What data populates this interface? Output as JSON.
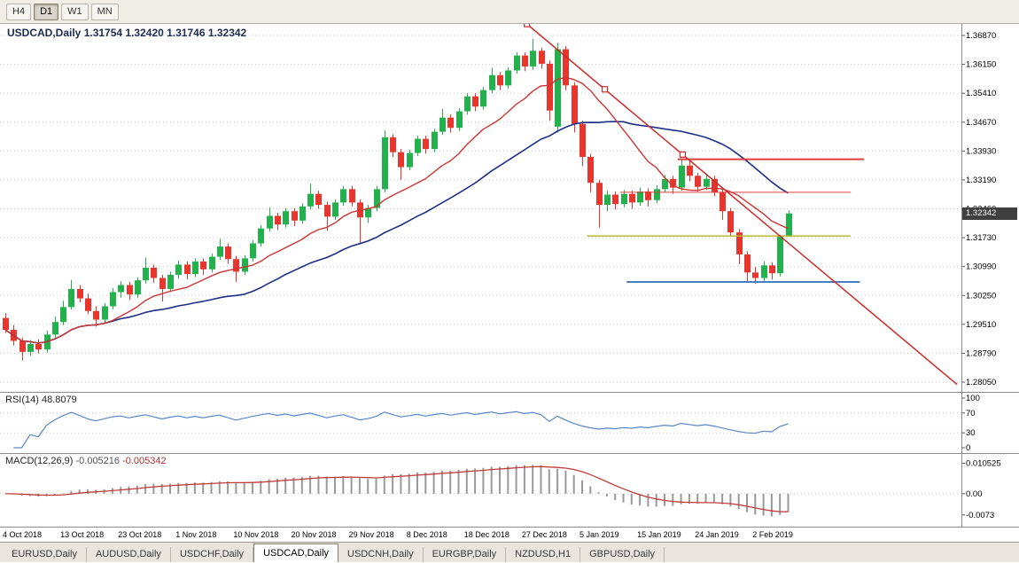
{
  "colors": {
    "bull": "#22b14c",
    "bear": "#e8352e",
    "ma_fast": "#cf3434",
    "ma_slow": "#1c2f86",
    "trend": "#cc2a2a",
    "hline_red": "#e03c3c",
    "hline_yellow": "#b7ba2f",
    "hline_blue": "#4a7fbf",
    "rsi_line": "#5a87c5",
    "macd_hist": "#999999",
    "macd_signal": "#c23b3b",
    "grid": "#c9c9c9",
    "axis_text": "#000000",
    "badge_bg": "#3f3f3f"
  },
  "toolbar": {
    "timeframes": [
      {
        "label": "H4",
        "active": false
      },
      {
        "label": "D1",
        "active": true
      },
      {
        "label": "W1",
        "active": false
      },
      {
        "label": "MN",
        "active": false
      }
    ]
  },
  "chart": {
    "title": "USDCAD,Daily",
    "ohlc_text": "1.31754 1.32420 1.31746 1.32342",
    "price_badge": "1.32342",
    "price_axis_labels": [
      "1.36870",
      "1.36150",
      "1.35410",
      "1.34670",
      "1.33930",
      "1.33190",
      "1.32460",
      "1.31730",
      "1.30990",
      "1.30250",
      "1.29510",
      "1.28790",
      "1.28050"
    ]
  },
  "rsi": {
    "label": "RSI(14)",
    "value": "48.8079",
    "axis_labels": [
      "100",
      "70",
      "30",
      "0"
    ],
    "axis_values": [
      100,
      70,
      30,
      0
    ],
    "levels": [
      70,
      30
    ]
  },
  "macd": {
    "label": "MACD(12,26,9)",
    "value_main": "-0.005216",
    "value_signal": "-0.005342",
    "axis_labels": [
      "0.010525",
      "0.00",
      "-0.0073"
    ],
    "axis_values": [
      0.010525,
      0,
      -0.0073
    ]
  },
  "date_axis": {
    "ticks": [
      {
        "index": 0,
        "label": "4 Oct 2018"
      },
      {
        "index": 7,
        "label": "13 Oct 2018"
      },
      {
        "index": 14,
        "label": "23 Oct 2018"
      },
      {
        "index": 21,
        "label": "1 Nov 2018"
      },
      {
        "index": 28,
        "label": "10 Nov 2018"
      },
      {
        "index": 35,
        "label": "20 Nov 2018"
      },
      {
        "index": 42,
        "label": "29 Nov 2018"
      },
      {
        "index": 49,
        "label": "8 Dec 2018"
      },
      {
        "index": 56,
        "label": "18 Dec 2018"
      },
      {
        "index": 63,
        "label": "27 Dec 2018"
      },
      {
        "index": 70,
        "label": "5 Jan 2019"
      },
      {
        "index": 77,
        "label": "15 Jan 2019"
      },
      {
        "index": 84,
        "label": "24 Jan 2019"
      },
      {
        "index": 91,
        "label": "2 Feb 2019"
      }
    ]
  },
  "tabs": [
    {
      "label": "EURUSD,Daily",
      "active": false
    },
    {
      "label": "AUDUSD,Daily",
      "active": false
    },
    {
      "label": "USDCHF,Daily",
      "active": false
    },
    {
      "label": "USDCAD,Daily",
      "active": true
    },
    {
      "label": "USDCNH,Daily",
      "active": false
    },
    {
      "label": "EURGBP,Daily",
      "active": false
    },
    {
      "label": "NZDUSD,H1",
      "active": false
    },
    {
      "label": "GBPUSD,Daily",
      "active": false
    }
  ],
  "chart_data": {
    "type": "candlestick",
    "symbol": "USDCAD",
    "timeframe": "Daily",
    "ylim": [
      1.2805,
      1.3687
    ],
    "current_price": 1.32342,
    "last_bar": {
      "open": 1.31754,
      "high": 1.3242,
      "low": 1.31746,
      "close": 1.32342
    },
    "indicators": {
      "rsi_period": 14,
      "rsi_current": 48.8079,
      "macd_params": [
        12,
        26,
        9
      ],
      "macd_current": -0.005216,
      "macd_signal_current": -0.005342,
      "ma_fast_period": 13,
      "ma_slow_period": 30
    },
    "ohlc": [
      [
        1.2968,
        1.298,
        1.293,
        1.2938
      ],
      [
        1.2938,
        1.295,
        1.2898,
        1.291
      ],
      [
        1.291,
        1.2918,
        1.286,
        1.2882
      ],
      [
        1.2882,
        1.2912,
        1.2872,
        1.2902
      ],
      [
        1.2902,
        1.2914,
        1.2878,
        1.2888
      ],
      [
        1.2888,
        1.2936,
        1.288,
        1.2926
      ],
      [
        1.2926,
        1.2972,
        1.2918,
        1.2958
      ],
      [
        1.2958,
        1.3012,
        1.295,
        1.2996
      ],
      [
        1.2996,
        1.3065,
        1.299,
        1.3042
      ],
      [
        1.3042,
        1.3052,
        1.3008,
        1.3018
      ],
      [
        1.3018,
        1.303,
        1.2978,
        1.2986
      ],
      [
        1.2986,
        1.2998,
        1.2946,
        1.2964
      ],
      [
        1.2964,
        1.3006,
        1.2956,
        1.2998
      ],
      [
        1.2998,
        1.3044,
        1.299,
        1.3034
      ],
      [
        1.3034,
        1.3062,
        1.302,
        1.3052
      ],
      [
        1.3052,
        1.306,
        1.3014,
        1.3028
      ],
      [
        1.3028,
        1.3072,
        1.302,
        1.3064
      ],
      [
        1.3064,
        1.3122,
        1.3056,
        1.3096
      ],
      [
        1.3096,
        1.3104,
        1.3058,
        1.307
      ],
      [
        1.307,
        1.3078,
        1.301,
        1.3042
      ],
      [
        1.3042,
        1.3086,
        1.3034,
        1.3078
      ],
      [
        1.3078,
        1.3114,
        1.3068,
        1.3104
      ],
      [
        1.3104,
        1.3112,
        1.3066,
        1.308
      ],
      [
        1.308,
        1.312,
        1.3072,
        1.3112
      ],
      [
        1.3112,
        1.312,
        1.3078,
        1.3092
      ],
      [
        1.3092,
        1.3132,
        1.3084,
        1.3124
      ],
      [
        1.3124,
        1.317,
        1.3116,
        1.315
      ],
      [
        1.315,
        1.3158,
        1.3106,
        1.3118
      ],
      [
        1.3118,
        1.3126,
        1.306,
        1.3086
      ],
      [
        1.3086,
        1.3128,
        1.3078,
        1.312
      ],
      [
        1.312,
        1.3166,
        1.3112,
        1.3158
      ],
      [
        1.3158,
        1.3204,
        1.315,
        1.3196
      ],
      [
        1.3196,
        1.325,
        1.3188,
        1.3228
      ],
      [
        1.3228,
        1.3236,
        1.3192,
        1.3206
      ],
      [
        1.3206,
        1.3248,
        1.3198,
        1.324
      ],
      [
        1.324,
        1.3248,
        1.3202,
        1.3216
      ],
      [
        1.3216,
        1.326,
        1.3208,
        1.3252
      ],
      [
        1.3252,
        1.331,
        1.3244,
        1.3284
      ],
      [
        1.3284,
        1.3292,
        1.3246,
        1.3256
      ],
      [
        1.3256,
        1.3264,
        1.319,
        1.3226
      ],
      [
        1.3226,
        1.327,
        1.3218,
        1.3262
      ],
      [
        1.3262,
        1.3304,
        1.3254,
        1.3296
      ],
      [
        1.3296,
        1.3304,
        1.3252,
        1.3262
      ],
      [
        1.3262,
        1.327,
        1.316,
        1.3224
      ],
      [
        1.3224,
        1.3256,
        1.321,
        1.3248
      ],
      [
        1.3248,
        1.3304,
        1.324,
        1.3296
      ],
      [
        1.3296,
        1.3445,
        1.3288,
        1.3428
      ],
      [
        1.3428,
        1.3436,
        1.3378,
        1.339
      ],
      [
        1.339,
        1.3398,
        1.332,
        1.3352
      ],
      [
        1.3352,
        1.3396,
        1.3344,
        1.3388
      ],
      [
        1.3388,
        1.3432,
        1.338,
        1.3424
      ],
      [
        1.3424,
        1.3432,
        1.3386,
        1.3398
      ],
      [
        1.3398,
        1.345,
        1.339,
        1.3442
      ],
      [
        1.3442,
        1.35,
        1.3434,
        1.3478
      ],
      [
        1.3478,
        1.3486,
        1.344,
        1.3452
      ],
      [
        1.3452,
        1.3502,
        1.3444,
        1.3494
      ],
      [
        1.3494,
        1.354,
        1.3486,
        1.3532
      ],
      [
        1.3532,
        1.354,
        1.3494,
        1.3506
      ],
      [
        1.3506,
        1.3556,
        1.3498,
        1.3548
      ],
      [
        1.3548,
        1.3605,
        1.354,
        1.3586
      ],
      [
        1.3586,
        1.3594,
        1.3548,
        1.356
      ],
      [
        1.356,
        1.3606,
        1.3552,
        1.3598
      ],
      [
        1.3598,
        1.3644,
        1.359,
        1.3636
      ],
      [
        1.3636,
        1.3644,
        1.3596,
        1.3608
      ],
      [
        1.3608,
        1.3678,
        1.36,
        1.3648
      ],
      [
        1.3648,
        1.3656,
        1.3602,
        1.3615
      ],
      [
        1.3615,
        1.3623,
        1.347,
        1.3496
      ],
      [
        1.3455,
        1.3668,
        1.344,
        1.3652
      ],
      [
        1.3652,
        1.366,
        1.3548,
        1.356
      ],
      [
        1.356,
        1.3568,
        1.344,
        1.3462
      ],
      [
        1.3462,
        1.347,
        1.3355,
        1.3378
      ],
      [
        1.3378,
        1.3386,
        1.3288,
        1.3312
      ],
      [
        1.3312,
        1.332,
        1.3198,
        1.3256
      ],
      [
        1.3256,
        1.3292,
        1.324,
        1.3282
      ],
      [
        1.3282,
        1.329,
        1.3244,
        1.3258
      ],
      [
        1.3258,
        1.3294,
        1.325,
        1.3284
      ],
      [
        1.3284,
        1.3292,
        1.3246,
        1.3262
      ],
      [
        1.3262,
        1.33,
        1.3254,
        1.329
      ],
      [
        1.329,
        1.3298,
        1.3252,
        1.3268
      ],
      [
        1.3268,
        1.3306,
        1.326,
        1.3296
      ],
      [
        1.3296,
        1.3332,
        1.3288,
        1.3322
      ],
      [
        1.3322,
        1.333,
        1.3284,
        1.33
      ],
      [
        1.33,
        1.3375,
        1.3292,
        1.3356
      ],
      [
        1.3356,
        1.3368,
        1.3316,
        1.333
      ],
      [
        1.333,
        1.3338,
        1.329,
        1.3302
      ],
      [
        1.3302,
        1.3332,
        1.3294,
        1.3322
      ],
      [
        1.3322,
        1.333,
        1.3278,
        1.3288
      ],
      [
        1.3288,
        1.3296,
        1.3218,
        1.324
      ],
      [
        1.324,
        1.3248,
        1.3176,
        1.3186
      ],
      [
        1.3186,
        1.3194,
        1.3105,
        1.313
      ],
      [
        1.313,
        1.3138,
        1.3062,
        1.3084
      ],
      [
        1.3084,
        1.3098,
        1.3055,
        1.307
      ],
      [
        1.307,
        1.3112,
        1.3062,
        1.3102
      ],
      [
        1.3102,
        1.311,
        1.3066,
        1.3082
      ],
      [
        1.3082,
        1.318,
        1.3074,
        1.3175
      ],
      [
        1.31754,
        1.3242,
        1.31746,
        1.32342
      ]
    ],
    "objects": {
      "trendline": {
        "name": "descending-trendline",
        "color": "#cc2a2a",
        "width": 1.5,
        "p1": {
          "index": 63.3,
          "price": 1.3716
        },
        "p2": {
          "index": 82.2,
          "price": 1.3384
        },
        "extend_to_index": 115.5
      },
      "hlines": [
        {
          "name": "resistance-line-upper",
          "price": 1.3372,
          "from_index": 81.6,
          "to_index": 104.2,
          "color": "#e03c3c",
          "width": 2
        },
        {
          "name": "resistance-line-lower",
          "price": 1.3288,
          "from_index": 74.6,
          "to_index": 102.6,
          "color": "#e03c3c",
          "width": 1
        },
        {
          "name": "support-line-yellow",
          "price": 1.3177,
          "from_index": 70.6,
          "to_index": 102.6,
          "color": "#b7ba2f",
          "width": 1.5
        },
        {
          "name": "support-line-blue",
          "price": 1.306,
          "from_index": 75.4,
          "to_index": 103.7,
          "color": "#4a7fbf",
          "width": 2
        }
      ]
    }
  }
}
